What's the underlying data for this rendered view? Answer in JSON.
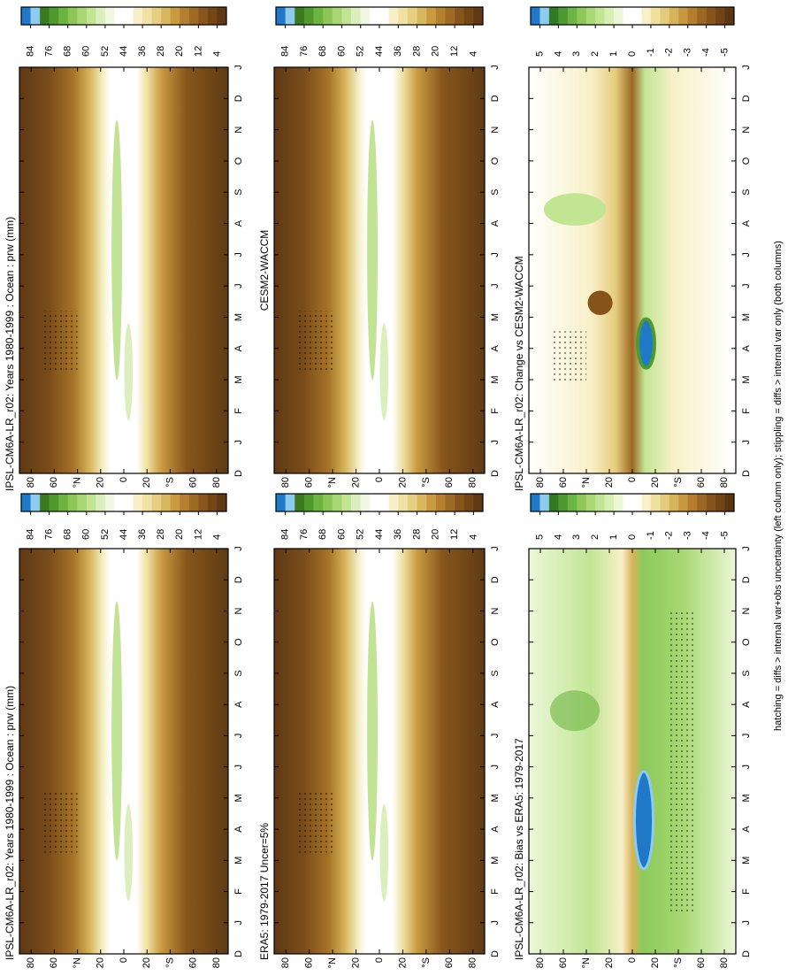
{
  "chart_data": [
    {
      "type": "contour",
      "title": "IPSL-CM6A-LR_r02: Years 1980-1999 : Ocean : prw (mm)",
      "categories": [
        "D",
        "J",
        "F",
        "M",
        "A",
        "M",
        "J",
        "J",
        "A",
        "S",
        "O",
        "N",
        "D",
        "J"
      ],
      "ylim": [
        -90,
        90
      ],
      "yticks": [
        {
          "value": 80,
          "label": "80"
        },
        {
          "value": 60,
          "label": "60"
        },
        {
          "value": 40,
          "label": "°N"
        },
        {
          "value": 20,
          "label": "20"
        },
        {
          "value": 0,
          "label": "0"
        },
        {
          "value": -20,
          "label": "20"
        },
        {
          "value": -40,
          "label": "°S"
        },
        {
          "value": -60,
          "label": "60"
        },
        {
          "value": -80,
          "label": "80"
        }
      ],
      "colorbar": {
        "ticks": [
          84,
          76,
          68,
          60,
          52,
          44,
          36,
          28,
          20,
          12,
          4
        ],
        "colors": [
          "#1f78c8",
          "#8ecbf0",
          "#3b7a1e",
          "#4f9a2a",
          "#6db33f",
          "#8cc654",
          "#a8d672",
          "#c2e394",
          "#dbefbc",
          "#f0f8e4",
          "#ffffff",
          "#ffffff",
          "#f6efc8",
          "#efe2a4",
          "#e6cf80",
          "#d9b75e",
          "#c99a40",
          "#b5802e",
          "#9e6a24",
          "#88561c",
          "#744616",
          "#603812"
        ]
      }
    },
    {
      "type": "contour",
      "title": "IPSL-CM6A-LR_r02: Years 1980-1999 : Ocean : prw (mm)",
      "categories": [
        "D",
        "J",
        "F",
        "M",
        "A",
        "M",
        "J",
        "J",
        "A",
        "S",
        "O",
        "N",
        "D",
        "J"
      ],
      "ylim": [
        -90,
        90
      ],
      "yticks": [
        {
          "value": 80,
          "label": "80"
        },
        {
          "value": 60,
          "label": "60"
        },
        {
          "value": 40,
          "label": "°N"
        },
        {
          "value": 20,
          "label": "20"
        },
        {
          "value": 0,
          "label": "0"
        },
        {
          "value": -20,
          "label": "20"
        },
        {
          "value": -40,
          "label": "°S"
        },
        {
          "value": -60,
          "label": "60"
        },
        {
          "value": -80,
          "label": "80"
        }
      ],
      "colorbar": {
        "ticks": [
          84,
          76,
          68,
          60,
          52,
          44,
          36,
          28,
          20,
          12,
          4
        ],
        "colors": [
          "#1f78c8",
          "#8ecbf0",
          "#3b7a1e",
          "#4f9a2a",
          "#6db33f",
          "#8cc654",
          "#a8d672",
          "#c2e394",
          "#dbefbc",
          "#f0f8e4",
          "#ffffff",
          "#ffffff",
          "#f6efc8",
          "#efe2a4",
          "#e6cf80",
          "#d9b75e",
          "#c99a40",
          "#b5802e",
          "#9e6a24",
          "#88561c",
          "#744616",
          "#603812"
        ]
      }
    },
    {
      "type": "contour",
      "title": "ERA5: 1979-2017 Uncer=5%",
      "categories": [
        "D",
        "J",
        "F",
        "M",
        "A",
        "M",
        "J",
        "J",
        "A",
        "S",
        "O",
        "N",
        "D",
        "J"
      ],
      "ylim": [
        -90,
        90
      ],
      "yticks": [
        {
          "value": 80,
          "label": "80"
        },
        {
          "value": 60,
          "label": "60"
        },
        {
          "value": 40,
          "label": "°N"
        },
        {
          "value": 20,
          "label": "20"
        },
        {
          "value": 0,
          "label": "0"
        },
        {
          "value": -20,
          "label": "20"
        },
        {
          "value": -40,
          "label": "°S"
        },
        {
          "value": -60,
          "label": "60"
        },
        {
          "value": -80,
          "label": "80"
        }
      ],
      "colorbar": {
        "ticks": [
          84,
          76,
          68,
          60,
          52,
          44,
          36,
          28,
          20,
          12,
          4
        ],
        "colors": [
          "#1f78c8",
          "#8ecbf0",
          "#3b7a1e",
          "#4f9a2a",
          "#6db33f",
          "#8cc654",
          "#a8d672",
          "#c2e394",
          "#dbefbc",
          "#f0f8e4",
          "#ffffff",
          "#ffffff",
          "#f6efc8",
          "#efe2a4",
          "#e6cf80",
          "#d9b75e",
          "#c99a40",
          "#b5802e",
          "#9e6a24",
          "#88561c",
          "#744616",
          "#603812"
        ]
      }
    },
    {
      "type": "contour",
      "title": "CESM2-WACCM",
      "categories": [
        "D",
        "J",
        "F",
        "M",
        "A",
        "M",
        "J",
        "J",
        "A",
        "S",
        "O",
        "N",
        "D",
        "J"
      ],
      "ylim": [
        -90,
        90
      ],
      "yticks": [
        {
          "value": 80,
          "label": "80"
        },
        {
          "value": 60,
          "label": "60"
        },
        {
          "value": 40,
          "label": "°N"
        },
        {
          "value": 20,
          "label": "20"
        },
        {
          "value": 0,
          "label": "0"
        },
        {
          "value": -20,
          "label": "20"
        },
        {
          "value": -40,
          "label": "°S"
        },
        {
          "value": -60,
          "label": "60"
        },
        {
          "value": -80,
          "label": "80"
        }
      ],
      "colorbar": {
        "ticks": [
          84,
          76,
          68,
          60,
          52,
          44,
          36,
          28,
          20,
          12,
          4
        ],
        "colors": [
          "#1f78c8",
          "#8ecbf0",
          "#3b7a1e",
          "#4f9a2a",
          "#6db33f",
          "#8cc654",
          "#a8d672",
          "#c2e394",
          "#dbefbc",
          "#f0f8e4",
          "#ffffff",
          "#ffffff",
          "#f6efc8",
          "#efe2a4",
          "#e6cf80",
          "#d9b75e",
          "#c99a40",
          "#b5802e",
          "#9e6a24",
          "#88561c",
          "#744616",
          "#603812"
        ]
      }
    },
    {
      "type": "contour",
      "title": "IPSL-CM6A-LR_r02: Bias vs ERA5: 1979-2017",
      "categories": [
        "D",
        "J",
        "F",
        "M",
        "A",
        "M",
        "J",
        "J",
        "A",
        "S",
        "O",
        "N",
        "D",
        "J"
      ],
      "ylim": [
        -90,
        90
      ],
      "yticks": [
        {
          "value": 80,
          "label": "80"
        },
        {
          "value": 60,
          "label": "60"
        },
        {
          "value": 40,
          "label": "°N"
        },
        {
          "value": 20,
          "label": "20"
        },
        {
          "value": 0,
          "label": "0"
        },
        {
          "value": -20,
          "label": "20"
        },
        {
          "value": -40,
          "label": "°S"
        },
        {
          "value": -60,
          "label": "60"
        },
        {
          "value": -80,
          "label": "80"
        }
      ],
      "colorbar": {
        "ticks": [
          5,
          4,
          3,
          2,
          1,
          0,
          -1,
          -2,
          -3,
          -4,
          -5
        ],
        "colors": [
          "#1f78c8",
          "#8ecbf0",
          "#2f7a22",
          "#4c9a30",
          "#6cb444",
          "#8dc95a",
          "#a9d874",
          "#c2e594",
          "#d8efb4",
          "#ecf7d8",
          "#ffffff",
          "#ffffff",
          "#f8f0c8",
          "#efe0a0",
          "#e4cc7c",
          "#d7b35a",
          "#c79840",
          "#b47e2c",
          "#9c6722",
          "#86541a",
          "#704414",
          "#5c3610"
        ]
      }
    },
    {
      "type": "contour",
      "title": "IPSL-CM6A-LR_r02: Change vs CESM2-WACCM",
      "categories": [
        "D",
        "J",
        "F",
        "M",
        "A",
        "M",
        "J",
        "J",
        "A",
        "S",
        "O",
        "N",
        "D",
        "J"
      ],
      "ylim": [
        -90,
        90
      ],
      "yticks": [
        {
          "value": 80,
          "label": "80"
        },
        {
          "value": 60,
          "label": "60"
        },
        {
          "value": 40,
          "label": "°N"
        },
        {
          "value": 20,
          "label": "20"
        },
        {
          "value": 0,
          "label": "0"
        },
        {
          "value": -20,
          "label": "20"
        },
        {
          "value": -40,
          "label": "°S"
        },
        {
          "value": -60,
          "label": "60"
        },
        {
          "value": -80,
          "label": "80"
        }
      ],
      "colorbar": {
        "ticks": [
          5,
          4,
          3,
          2,
          1,
          0,
          -1,
          -2,
          -3,
          -4,
          -5
        ],
        "colors": [
          "#1f78c8",
          "#8ecbf0",
          "#2f7a22",
          "#4c9a30",
          "#6cb444",
          "#8dc95a",
          "#a9d874",
          "#c2e594",
          "#d8efb4",
          "#ecf7d8",
          "#ffffff",
          "#ffffff",
          "#f8f0c8",
          "#efe0a0",
          "#e4cc7c",
          "#d7b35a",
          "#c79840",
          "#b47e2c",
          "#9c6722",
          "#86541a",
          "#704414",
          "#5c3610"
        ]
      }
    }
  ],
  "caption": "hatching = diffs > internal var+obs uncertainty (left column only); stippling = diffs > internal var only (both columns)"
}
